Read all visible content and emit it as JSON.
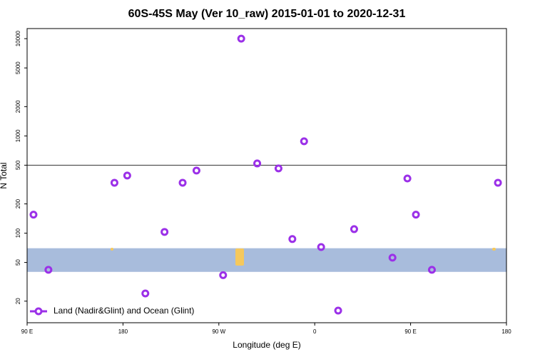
{
  "chart_data": {
    "type": "scatter",
    "scale": "log",
    "title": "60S-45S May (Ver 10_raw)   2015-01-01 to 2020-12-31",
    "xlabel": "Longitude (deg E)",
    "ylabel": "N Total",
    "xlim": [
      -270,
      180
    ],
    "xticks": [
      {
        "value": -270,
        "label": "90 E"
      },
      {
        "value": -180,
        "label": "180"
      },
      {
        "value": -90,
        "label": "90 W"
      },
      0,
      {
        "value": 90,
        "label": "90 E"
      },
      180
    ],
    "ylim": [
      12,
      12700
    ],
    "yticks": [
      20,
      50,
      100,
      200,
      500,
      1000,
      2000,
      5000,
      10000
    ],
    "hline": 500,
    "band": [
      40,
      70
    ],
    "band_color": "#a8bcdc",
    "legend": "lower left",
    "series": [
      {
        "name": "Land (Nadir&Glint) and Ocean (Glint)",
        "color": "#9b30e8",
        "x": [
          -264,
          -250,
          -188,
          -176,
          -159,
          -141,
          -124,
          -111,
          -86,
          -69,
          -54,
          -34,
          -21,
          -10,
          6,
          22,
          37,
          73,
          87,
          95,
          110,
          172
        ],
        "values": [
          155,
          42,
          330,
          391,
          24,
          103,
          330,
          440,
          37,
          10000,
          521,
          463,
          87,
          880,
          72,
          16,
          110,
          56,
          365,
          155,
          42,
          330
        ]
      }
    ]
  }
}
